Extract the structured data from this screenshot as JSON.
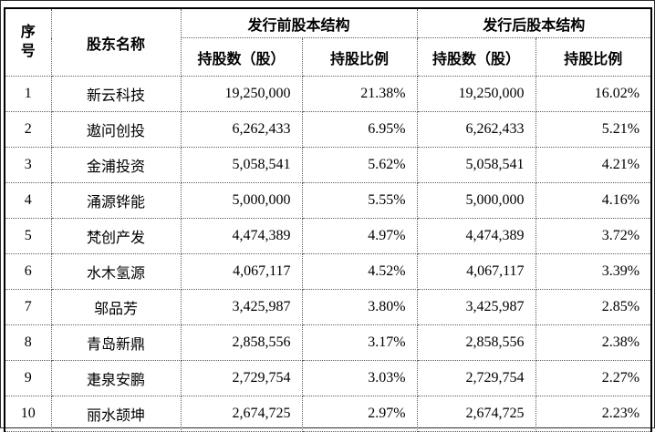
{
  "table": {
    "headers": {
      "no": "序号",
      "shareholder": "股东名称",
      "pre_group": "发行前股本结构",
      "post_group": "发行后股本结构",
      "pre_shares": "持股数（股）",
      "pre_ratio": "持股比例",
      "post_shares": "持股数（股）",
      "post_ratio": "持股比例"
    },
    "rows": [
      {
        "no": "1",
        "name": "新云科技",
        "pre_shares": "19,250,000",
        "pre_ratio": "21.38%",
        "post_shares": "19,250,000",
        "post_ratio": "16.02%"
      },
      {
        "no": "2",
        "name": "遨问创投",
        "pre_shares": "6,262,433",
        "pre_ratio": "6.95%",
        "post_shares": "6,262,433",
        "post_ratio": "5.21%"
      },
      {
        "no": "3",
        "name": "金浦投资",
        "pre_shares": "5,058,541",
        "pre_ratio": "5.62%",
        "post_shares": "5,058,541",
        "post_ratio": "4.21%"
      },
      {
        "no": "4",
        "name": "涌源铧能",
        "pre_shares": "5,000,000",
        "pre_ratio": "5.55%",
        "post_shares": "5,000,000",
        "post_ratio": "4.16%"
      },
      {
        "no": "5",
        "name": "梵创产发",
        "pre_shares": "4,474,389",
        "pre_ratio": "4.97%",
        "post_shares": "4,474,389",
        "post_ratio": "3.72%"
      },
      {
        "no": "6",
        "name": "水木氢源",
        "pre_shares": "4,067,117",
        "pre_ratio": "4.52%",
        "post_shares": "4,067,117",
        "post_ratio": "3.39%"
      },
      {
        "no": "7",
        "name": "邬品芳",
        "pre_shares": "3,425,987",
        "pre_ratio": "3.80%",
        "post_shares": "3,425,987",
        "post_ratio": "2.85%"
      },
      {
        "no": "8",
        "name": "青岛新鼎",
        "pre_shares": "2,858,556",
        "pre_ratio": "3.17%",
        "post_shares": "2,858,556",
        "post_ratio": "2.38%"
      },
      {
        "no": "9",
        "name": "疌泉安鹏",
        "pre_shares": "2,729,754",
        "pre_ratio": "3.03%",
        "post_shares": "2,729,754",
        "post_ratio": "2.27%"
      },
      {
        "no": "10",
        "name": "丽水颉坤",
        "pre_shares": "2,674,725",
        "pre_ratio": "2.97%",
        "post_shares": "2,674,725",
        "post_ratio": "2.23%"
      }
    ]
  }
}
